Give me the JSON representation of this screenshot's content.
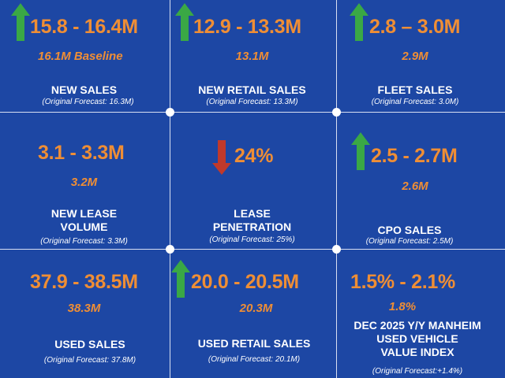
{
  "colors": {
    "background": "#1d47a4",
    "value": "#ef8e35",
    "up_arrow": "#3aa845",
    "down_arrow": "#c0392b"
  },
  "cells": [
    {
      "value": "15.8 - 16.4M",
      "baseline": "16.1M Baseline",
      "label": "NEW SALES",
      "note": "(Original Forecast: 16.3M)",
      "trend": "up-arrow-icon"
    },
    {
      "value": "12.9 - 13.3M",
      "baseline": "13.1M",
      "label": "NEW RETAIL SALES",
      "note": "(Original Forecast: 13.3M)",
      "trend": "up-arrow-icon"
    },
    {
      "value": "2.8 – 3.0M",
      "baseline": "2.9M",
      "label": "FLEET SALES",
      "note": "(Original Forecast: 3.0M)",
      "trend": "up-arrow-icon"
    },
    {
      "value": "3.1 - 3.3M",
      "baseline": "3.2M",
      "label_line1": "NEW LEASE",
      "label_line2": "VOLUME",
      "note": "(Original Forecast: 3.3M)"
    },
    {
      "value": "24%",
      "label_line1": "LEASE",
      "label_line2": "PENETRATION",
      "note": "(Original Forecast: 25%)",
      "trend": "down-arrow-icon"
    },
    {
      "value": "2.5 - 2.7M",
      "baseline": "2.6M",
      "label": "CPO SALES",
      "note": "(Original Forecast: 2.5M)",
      "trend": "up-arrow-icon"
    },
    {
      "value": "37.9 - 38.5M",
      "baseline": "38.3M",
      "label": "USED SALES",
      "note": "(Original Forecast: 37.8M)"
    },
    {
      "value": "20.0 - 20.5M",
      "baseline": "20.3M",
      "label": "USED RETAIL SALES",
      "note": "(Original Forecast: 20.1M)",
      "trend": "up-arrow-icon"
    },
    {
      "value": "1.5% - 2.1%",
      "baseline": "1.8%",
      "label_line1": "DEC 2025 Y/Y MANHEIM",
      "label_line2": "USED VEHICLE",
      "label_line3": "VALUE INDEX",
      "note": "(Original Forecast:+1.4%)"
    }
  ]
}
